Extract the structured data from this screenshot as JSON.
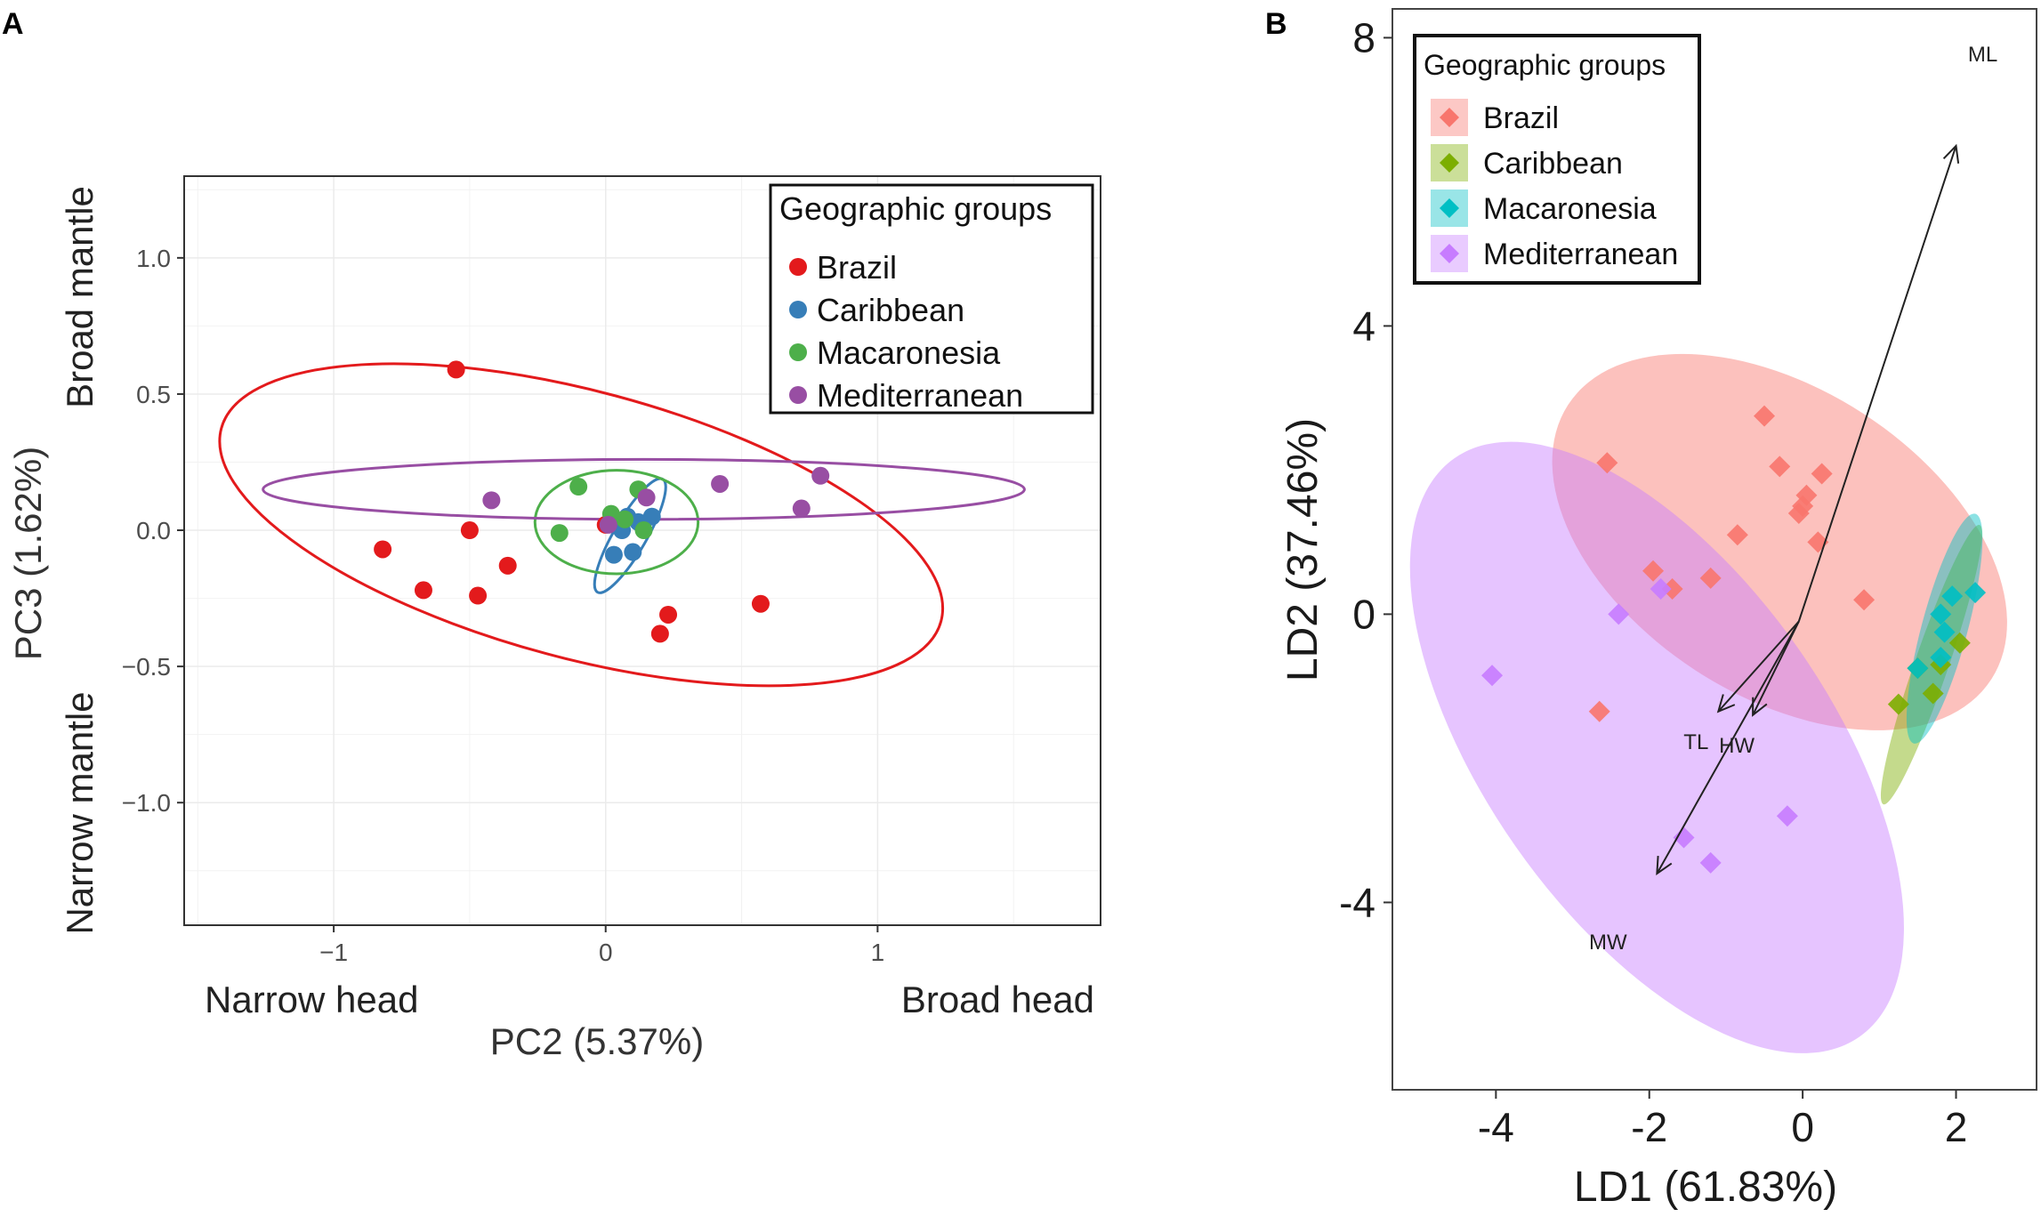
{
  "chart_data": [
    {
      "panel": "A",
      "type": "scatter",
      "xlabel": "PC2 (5.37%)",
      "ylabel": "PC3 (1.62%)",
      "xlim": [
        -1.55,
        1.82
      ],
      "ylim": [
        -1.45,
        1.3
      ],
      "xticks": [
        -1,
        0,
        1
      ],
      "xtick_labels": [
        "−1",
        "0",
        "1"
      ],
      "yticks": [
        1.0,
        0.5,
        0.0,
        -0.5,
        -1.0
      ],
      "ytick_labels": [
        "1.0",
        "0.5",
        "0.0",
        "−0.5",
        "−1.0"
      ],
      "grid": true,
      "annotations": {
        "x_low": "Narrow head",
        "x_high": "Broad head",
        "y_high": "Broad mantle",
        "y_low": "Narrow mantle"
      },
      "legend": {
        "title": "Geographic groups",
        "position": "top-right"
      },
      "series": [
        {
          "name": "Brazil",
          "color": "#e31a1c",
          "points": [
            [
              -0.55,
              0.59
            ],
            [
              -0.82,
              -0.07
            ],
            [
              -0.67,
              -0.22
            ],
            [
              -0.47,
              -0.24
            ],
            [
              -0.5,
              0.0
            ],
            [
              -0.36,
              -0.13
            ],
            [
              0.0,
              0.02
            ],
            [
              0.57,
              -0.27
            ],
            [
              0.23,
              -0.31
            ],
            [
              0.2,
              -0.38
            ]
          ],
          "ellipse": {
            "cx": -0.09,
            "cy": 0.02,
            "rx": 1.37,
            "ry": 0.49,
            "angle_deg": -15
          }
        },
        {
          "name": "Caribbean",
          "color": "#377eb8",
          "points": [
            [
              0.03,
              -0.09
            ],
            [
              0.1,
              -0.08
            ],
            [
              0.06,
              0.0
            ],
            [
              0.12,
              0.03
            ],
            [
              0.17,
              0.05
            ],
            [
              0.08,
              0.05
            ]
          ],
          "ellipse": {
            "cx": 0.09,
            "cy": -0.02,
            "rx": 0.24,
            "ry": 0.06,
            "angle_deg": 60
          }
        },
        {
          "name": "Macaronesia",
          "color": "#4daf4a",
          "points": [
            [
              -0.1,
              0.16
            ],
            [
              0.12,
              0.15
            ],
            [
              -0.17,
              -0.01
            ],
            [
              0.07,
              0.04
            ],
            [
              0.02,
              0.06
            ],
            [
              0.14,
              0.0
            ]
          ],
          "ellipse": {
            "cx": 0.04,
            "cy": 0.03,
            "rx": 0.3,
            "ry": 0.19,
            "angle_deg": 0
          }
        },
        {
          "name": "Mediterranean",
          "color": "#984ea3",
          "points": [
            [
              -0.42,
              0.11
            ],
            [
              0.15,
              0.12
            ],
            [
              0.42,
              0.17
            ],
            [
              0.79,
              0.2
            ],
            [
              0.72,
              0.08
            ],
            [
              0.01,
              0.02
            ]
          ],
          "ellipse": {
            "cx": 0.14,
            "cy": 0.15,
            "rx": 1.4,
            "ry": 0.11,
            "angle_deg": 0
          }
        }
      ]
    },
    {
      "panel": "B",
      "type": "scatter",
      "xlabel": "LD1 (61.83%)",
      "ylabel": "LD2 (37.46%)",
      "xlim": [
        -5.35,
        3.05
      ],
      "ylim": [
        -6.6,
        8.4
      ],
      "xticks": [
        -4,
        -2,
        0,
        2
      ],
      "xtick_labels": [
        "-4",
        "-2",
        "0",
        "2"
      ],
      "yticks": [
        8,
        4,
        0,
        -4
      ],
      "ytick_labels": [
        "8",
        "4",
        "0",
        "-4"
      ],
      "grid": false,
      "legend": {
        "title": "Geographic groups",
        "position": "top-left"
      },
      "loadings": {
        "origin": [
          -0.05,
          -0.1
        ],
        "arrows": [
          {
            "label": "ML",
            "end": [
              2.0,
              6.5
            ]
          },
          {
            "label": "TL",
            "end": [
              -1.1,
              -1.35
            ]
          },
          {
            "label": "HW",
            "end": [
              -0.65,
              -1.4
            ]
          },
          {
            "label": "MW",
            "end": [
              -1.9,
              -3.6
            ]
          }
        ]
      },
      "series": [
        {
          "name": "Brazil",
          "color": "#f8766d",
          "points": [
            [
              -2.55,
              2.1
            ],
            [
              -0.5,
              2.75
            ],
            [
              -0.3,
              2.05
            ],
            [
              0.05,
              1.65
            ],
            [
              0.25,
              1.95
            ],
            [
              -0.05,
              1.4
            ],
            [
              0.0,
              1.5
            ],
            [
              0.2,
              1.0
            ],
            [
              -0.85,
              1.1
            ],
            [
              -1.2,
              0.5
            ],
            [
              -1.95,
              0.6
            ],
            [
              -1.7,
              0.35
            ],
            [
              0.8,
              0.2
            ],
            [
              -2.65,
              -1.35
            ]
          ],
          "ellipse": {
            "cx": -0.3,
            "cy": 1.0,
            "rx": 2.0,
            "ry": 3.5,
            "angle_deg": 57
          }
        },
        {
          "name": "Caribbean",
          "color": "#7cae00",
          "points": [
            [
              1.25,
              -1.25
            ],
            [
              1.7,
              -1.1
            ],
            [
              1.8,
              -0.7
            ],
            [
              2.05,
              -0.4
            ],
            [
              1.5,
              -0.75
            ]
          ],
          "ellipse": {
            "cx": 1.68,
            "cy": -0.7,
            "rx": 0.22,
            "ry": 2.05,
            "angle_deg": -19
          }
        },
        {
          "name": "Macaronesia",
          "color": "#00bfc4",
          "points": [
            [
              1.95,
              0.25
            ],
            [
              2.25,
              0.3
            ],
            [
              1.8,
              0.0
            ],
            [
              1.85,
              -0.25
            ],
            [
              1.5,
              -0.75
            ],
            [
              1.8,
              -0.6
            ]
          ],
          "ellipse": {
            "cx": 1.85,
            "cy": -0.2,
            "rx": 0.3,
            "ry": 1.65,
            "angle_deg": -15
          }
        },
        {
          "name": "Mediterranean",
          "color": "#c77cff",
          "points": [
            [
              -2.4,
              0.0
            ],
            [
              -4.05,
              -0.85
            ],
            [
              -1.55,
              -3.1
            ],
            [
              -1.2,
              -3.45
            ],
            [
              -0.2,
              -2.8
            ],
            [
              -1.85,
              0.35
            ]
          ],
          "ellipse": {
            "cx": -1.9,
            "cy": -1.85,
            "rx": 2.25,
            "ry": 4.9,
            "angle_deg": 35
          }
        }
      ]
    }
  ],
  "panel_labels": {
    "a": "A",
    "b": "B"
  }
}
